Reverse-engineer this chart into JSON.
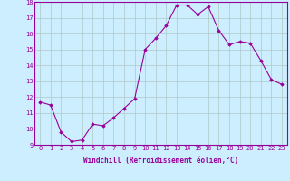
{
  "x": [
    0,
    1,
    2,
    3,
    4,
    5,
    6,
    7,
    8,
    9,
    10,
    11,
    12,
    13,
    14,
    15,
    16,
    17,
    18,
    19,
    20,
    21,
    22,
    23
  ],
  "y": [
    11.7,
    11.5,
    9.8,
    9.2,
    9.3,
    10.3,
    10.2,
    10.7,
    11.3,
    11.9,
    15.0,
    15.7,
    16.5,
    17.8,
    17.8,
    17.2,
    17.7,
    16.2,
    15.3,
    15.5,
    15.4,
    14.3,
    13.1,
    12.8
  ],
  "ylim": [
    9,
    18
  ],
  "yticks": [
    9,
    10,
    11,
    12,
    13,
    14,
    15,
    16,
    17,
    18
  ],
  "xticks": [
    0,
    1,
    2,
    3,
    4,
    5,
    6,
    7,
    8,
    9,
    10,
    11,
    12,
    13,
    14,
    15,
    16,
    17,
    18,
    19,
    20,
    21,
    22,
    23
  ],
  "xlabel": "Windchill (Refroidissement éolien,°C)",
  "line_color": "#990099",
  "marker": "D",
  "marker_size": 1.8,
  "bg_color": "#cceeff",
  "grid_color": "#b0c8c8",
  "tick_color": "#990099",
  "label_color": "#990099",
  "tick_fontsize": 5.0,
  "label_fontsize": 5.5
}
